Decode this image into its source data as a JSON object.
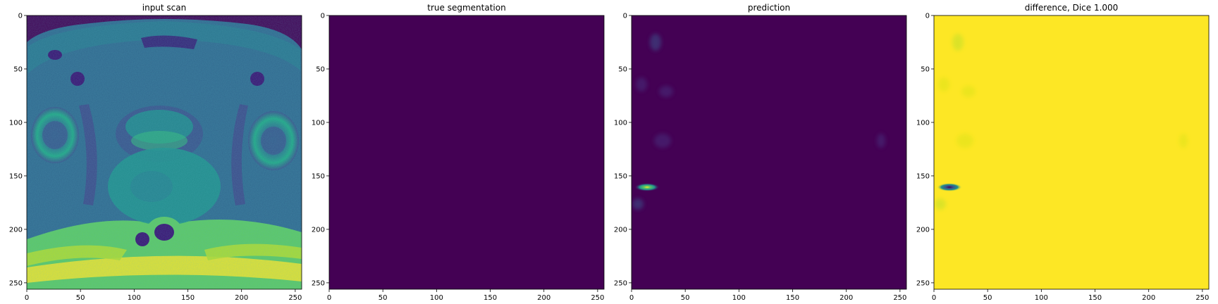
{
  "figure": {
    "panels": [
      {
        "id": "input",
        "title": "input scan"
      },
      {
        "id": "truth",
        "title": "true segmentation"
      },
      {
        "id": "pred",
        "title": "prediction"
      },
      {
        "id": "diff",
        "title": "difference, Dice 1.000"
      }
    ],
    "axis": {
      "ticks": [
        0,
        50,
        100,
        150,
        200,
        250
      ],
      "range": [
        0,
        256
      ]
    },
    "colormap": {
      "name": "viridis",
      "low": "#440154",
      "mid": "#21918c",
      "high": "#fde725"
    }
  }
}
